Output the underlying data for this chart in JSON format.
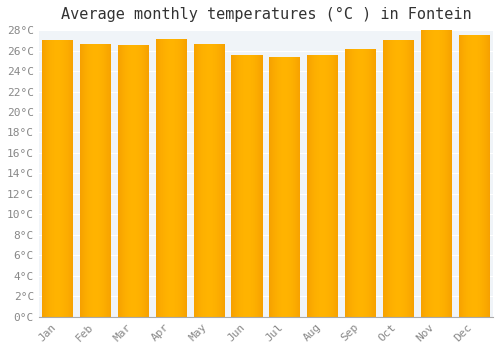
{
  "title": "Average monthly temperatures (°C ) in Fontein",
  "months": [
    "Jan",
    "Feb",
    "Mar",
    "Apr",
    "May",
    "Jun",
    "Jul",
    "Aug",
    "Sep",
    "Oct",
    "Nov",
    "Dec"
  ],
  "values": [
    27.0,
    26.6,
    26.5,
    27.1,
    26.6,
    25.6,
    25.4,
    25.6,
    26.2,
    27.0,
    28.0,
    27.5
  ],
  "bar_color_center": "#FFB300",
  "bar_color_edge": "#E65100",
  "ylim": [
    0,
    28
  ],
  "ytick_step": 2,
  "background_color": "#ffffff",
  "plot_bg_color": "#f0f4f8",
  "grid_color": "#ffffff",
  "title_fontsize": 11,
  "tick_fontsize": 8,
  "tick_color": "#888888",
  "font_family": "monospace",
  "bar_width": 0.82
}
